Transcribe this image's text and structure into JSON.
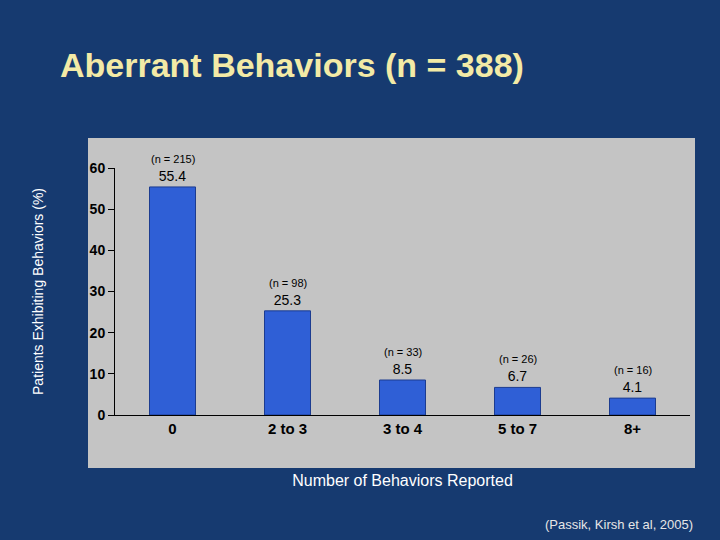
{
  "chart_data": {
    "type": "bar",
    "title": "Aberrant Behaviors (n = 388)",
    "x_label": "Number of Behaviors Reported",
    "y_label": "Patients Exhibiting Behaviors (%)",
    "categories": [
      "0",
      "2 to 3",
      "3 to 4",
      "5 to 7",
      "8+"
    ],
    "values": [
      55.4,
      25.3,
      8.5,
      6.7,
      4.1
    ],
    "color": "#2f5fd6",
    "data_labels": true,
    "annotations": [
      {
        "x": "0",
        "text": "(n = 215)"
      },
      {
        "x": "2 to 3",
        "text": "(n = 98)"
      },
      {
        "x": "3 to 4",
        "text": "(n = 33)"
      },
      {
        "x": "5 to 7",
        "text": "(n = 26)"
      },
      {
        "x": "8+",
        "text": "(n = 16)"
      }
    ],
    "source": "(Passik, Kirsh et al, 2005)",
    "ylim": [
      0,
      60
    ],
    "yticks": [
      0,
      10,
      20,
      30,
      40,
      50,
      60
    ],
    "grid": false
  }
}
